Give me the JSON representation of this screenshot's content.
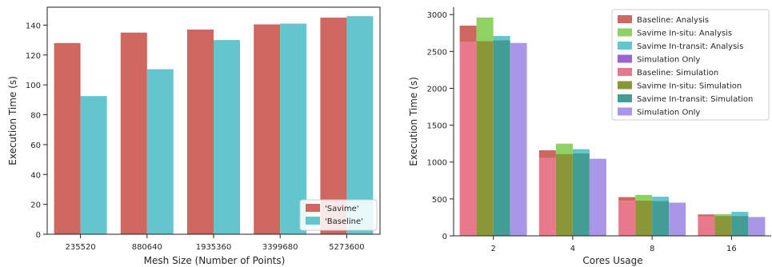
{
  "chart_data": [
    {
      "type": "bar",
      "title": "",
      "xlabel": "Mesh Size (Number of Points)",
      "ylabel": "Execution Time (s)",
      "categories": [
        "235520",
        "880640",
        "1935360",
        "3399680",
        "5273600"
      ],
      "ylim": [
        0,
        152
      ],
      "yticks": [
        0,
        20,
        40,
        60,
        80,
        100,
        120,
        140
      ],
      "grid": false,
      "legend_position": "bottom-right",
      "series": [
        {
          "name": "'Savime'",
          "color": "#cd6760",
          "values": [
            128,
            135,
            137,
            140.5,
            145
          ]
        },
        {
          "name": "'Baseline'",
          "color": "#63c5cd",
          "values": [
            92.5,
            110.5,
            130,
            141,
            146
          ]
        }
      ]
    },
    {
      "type": "bar",
      "stacked": true,
      "title": "",
      "xlabel": "Cores Usage",
      "ylabel": "Execution Time (s)",
      "categories": [
        "2",
        "4",
        "8",
        "16"
      ],
      "ylim": [
        0,
        3100
      ],
      "yticks": [
        0,
        500,
        1000,
        1500,
        2000,
        2500,
        3000
      ],
      "grid": false,
      "legend_position": "top-right",
      "legend_entries": [
        {
          "name": "Baseline: Analysis",
          "color": "#cd6760"
        },
        {
          "name": "Savime In-situ: Analysis",
          "color": "#8fd163"
        },
        {
          "name": "Savime In-transit: Analysis",
          "color": "#63c5cd"
        },
        {
          "name": "Simulation Only",
          "color": "#9966d6"
        },
        {
          "name": "Baseline: Simulation",
          "color": "#e8798c"
        },
        {
          "name": "Savime In-situ: Simulation",
          "color": "#8a9638"
        },
        {
          "name": "Savime In-transit: Simulation",
          "color": "#429e94"
        },
        {
          "name": "Simulation Only",
          "color": "#a996e6"
        }
      ],
      "series": [
        {
          "name": "Baseline",
          "simulation_color": "#e8798c",
          "analysis_color": "#cd6760",
          "simulation": [
            2630,
            1055,
            475,
            265
          ],
          "total": [
            2850,
            1160,
            525,
            290
          ]
        },
        {
          "name": "Savime In-situ",
          "simulation_color": "#8a9638",
          "analysis_color": "#8fd163",
          "simulation": [
            2640,
            1110,
            480,
            270
          ],
          "total": [
            2960,
            1250,
            555,
            295
          ]
        },
        {
          "name": "Savime In-transit",
          "simulation_color": "#429e94",
          "analysis_color": "#63c5cd",
          "simulation": [
            2650,
            1120,
            475,
            270
          ],
          "total": [
            2710,
            1175,
            530,
            325
          ]
        },
        {
          "name": "Simulation Only",
          "simulation_color": "#a996e6",
          "analysis_color": "#9966d6",
          "simulation": [
            2615,
            1045,
            450,
            255
          ],
          "total": [
            2615,
            1045,
            450,
            255
          ]
        }
      ]
    }
  ]
}
